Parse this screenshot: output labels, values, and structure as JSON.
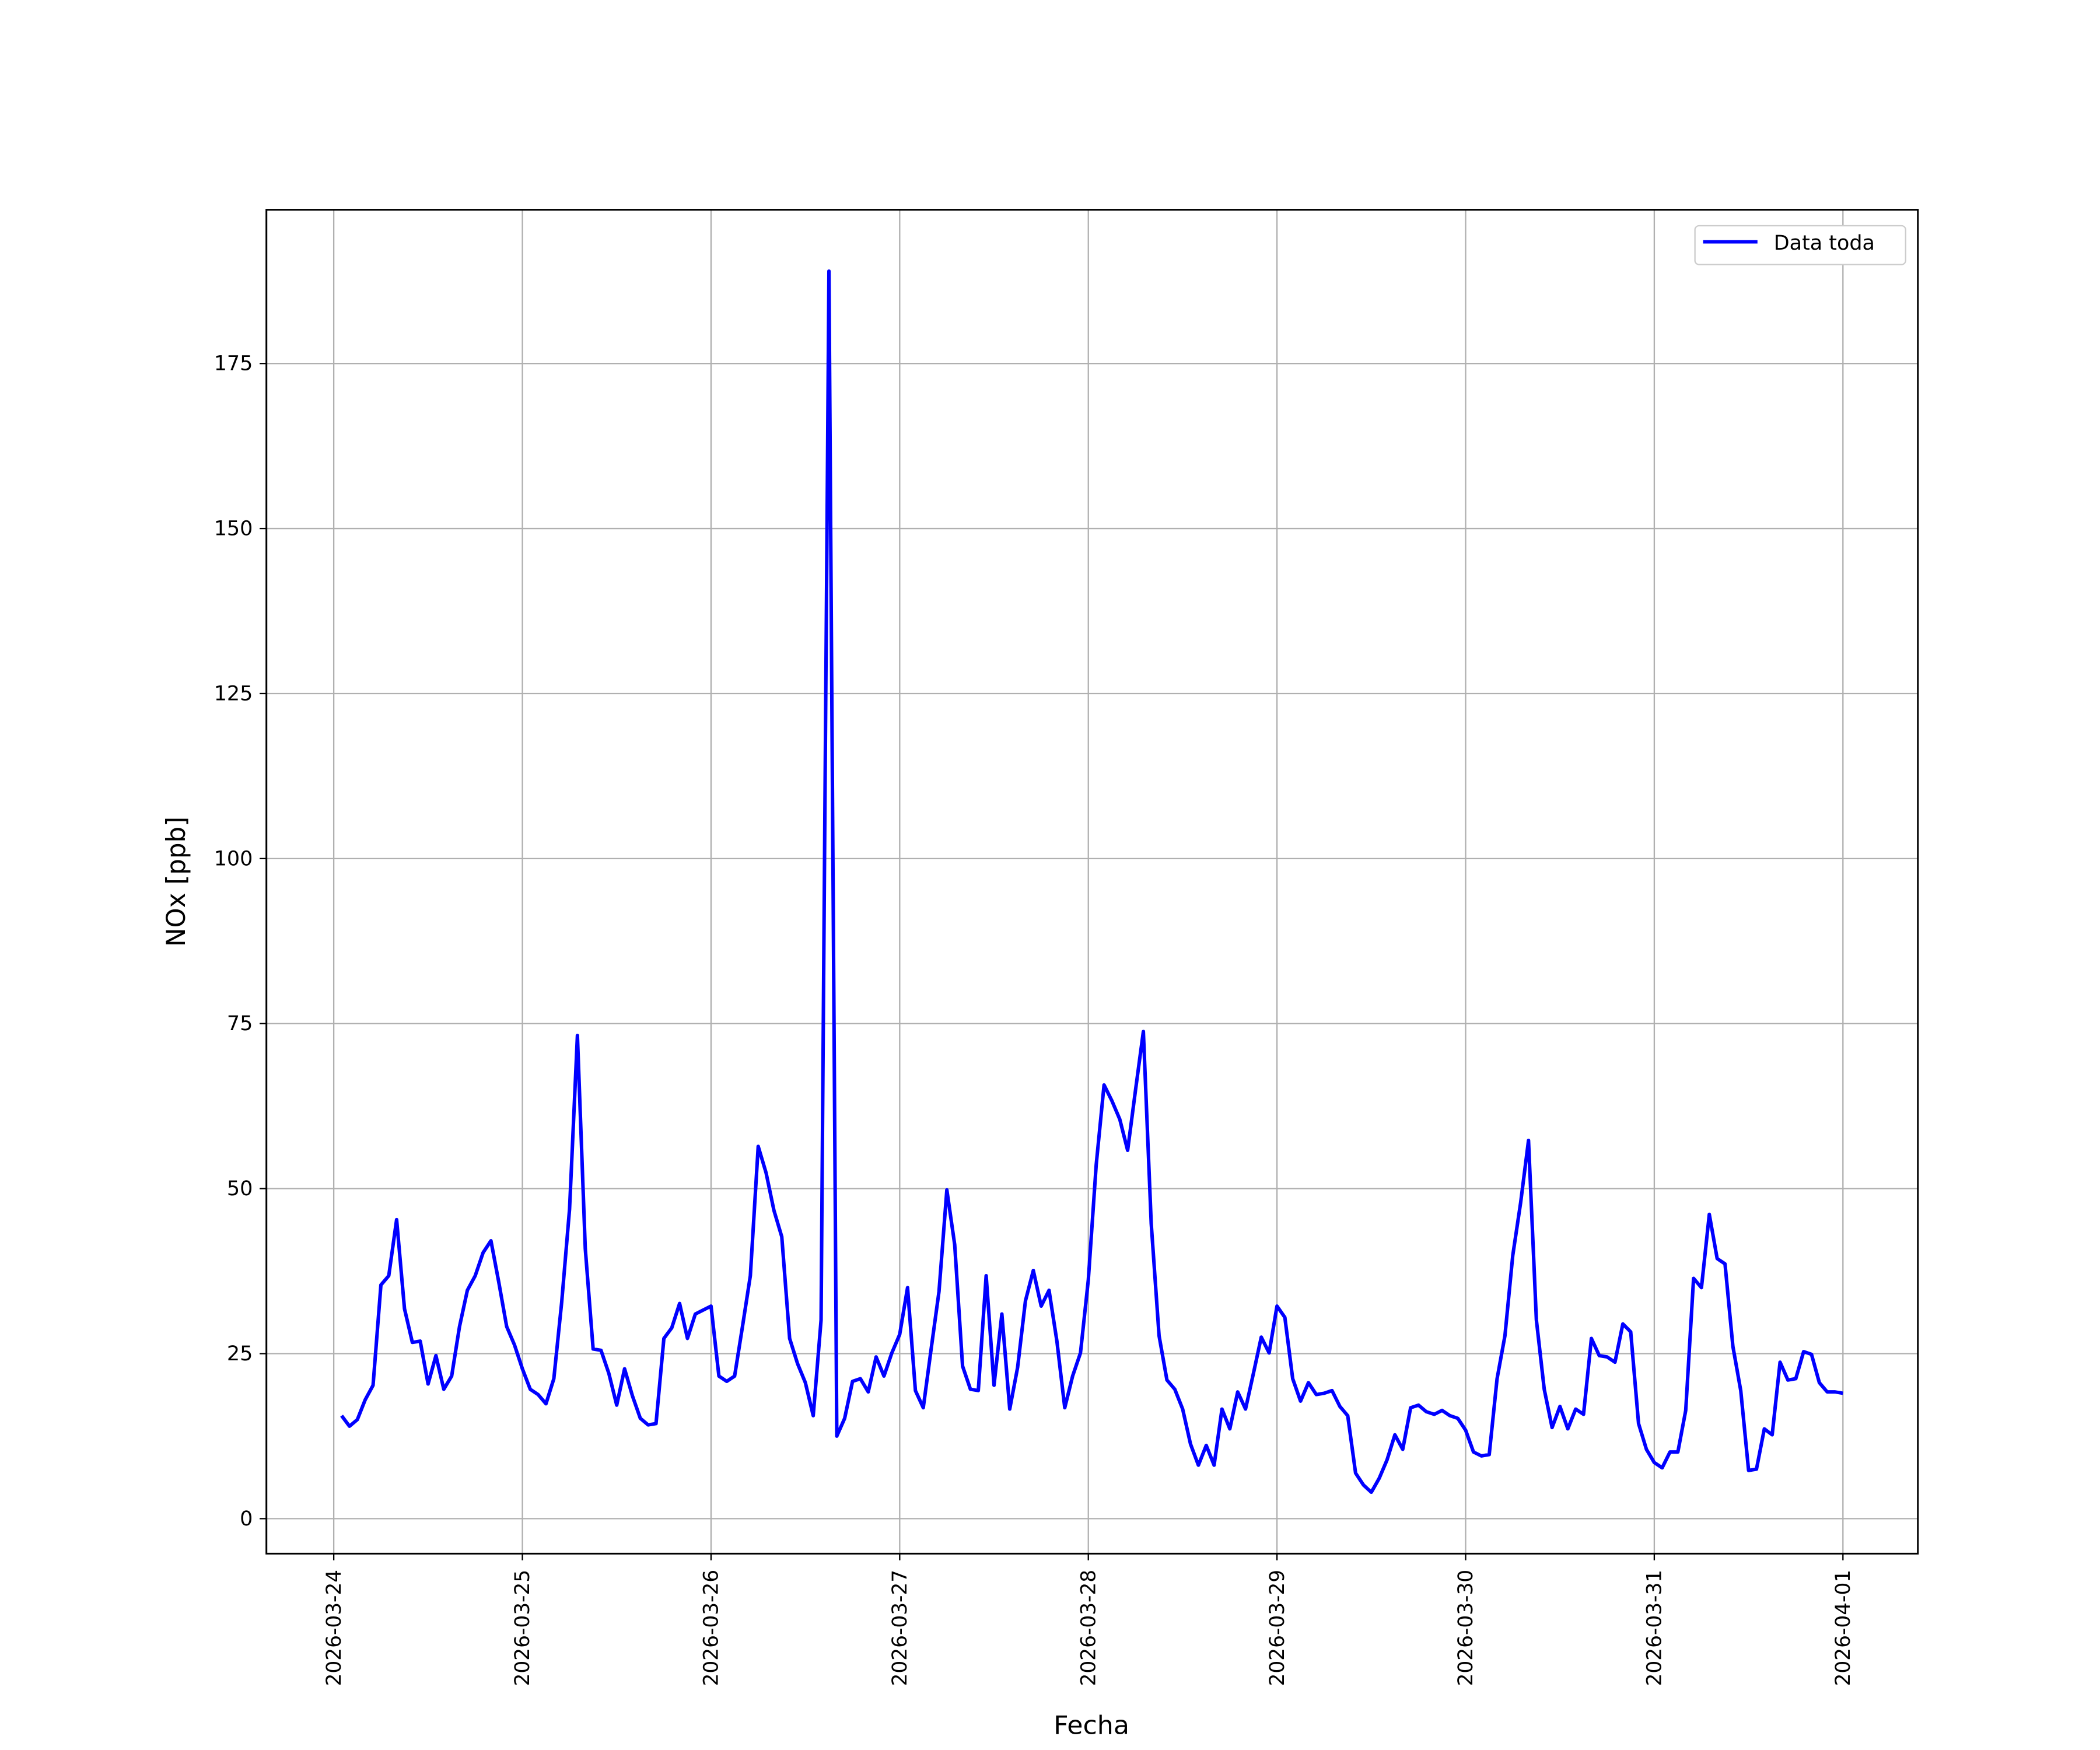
{
  "chart_data": {
    "type": "line",
    "xlabel": "Fecha",
    "ylabel": "NOx [ppb]",
    "x": [
      "2026-03-24 01:00",
      "2026-03-24 02:00",
      "2026-03-24 03:00",
      "2026-03-24 04:00",
      "2026-03-24 05:00",
      "2026-03-24 06:00",
      "2026-03-24 07:00",
      "2026-03-24 08:00",
      "2026-03-24 09:00",
      "2026-03-24 10:00",
      "2026-03-24 11:00",
      "2026-03-24 12:00",
      "2026-03-24 13:00",
      "2026-03-24 14:00",
      "2026-03-24 15:00",
      "2026-03-24 16:00",
      "2026-03-24 17:00",
      "2026-03-24 18:00",
      "2026-03-24 19:00",
      "2026-03-24 20:00",
      "2026-03-24 21:00",
      "2026-03-24 22:00",
      "2026-03-24 23:00",
      "2026-03-25 00:00",
      "2026-03-25 01:00",
      "2026-03-25 02:00",
      "2026-03-25 03:00",
      "2026-03-25 04:00",
      "2026-03-25 05:00",
      "2026-03-25 06:00",
      "2026-03-25 07:00",
      "2026-03-25 08:00",
      "2026-03-25 09:00",
      "2026-03-25 10:00",
      "2026-03-25 11:00",
      "2026-03-25 12:00",
      "2026-03-25 13:00",
      "2026-03-25 14:00",
      "2026-03-25 15:00",
      "2026-03-25 16:00",
      "2026-03-25 17:00",
      "2026-03-25 18:00",
      "2026-03-25 19:00",
      "2026-03-25 20:00",
      "2026-03-25 21:00",
      "2026-03-25 22:00",
      "2026-03-25 23:00",
      "2026-03-26 00:00",
      "2026-03-26 01:00",
      "2026-03-26 02:00",
      "2026-03-26 03:00",
      "2026-03-26 04:00",
      "2026-03-26 05:00",
      "2026-03-26 06:00",
      "2026-03-26 07:00",
      "2026-03-26 08:00",
      "2026-03-26 09:00",
      "2026-03-26 10:00",
      "2026-03-26 11:00",
      "2026-03-26 12:00",
      "2026-03-26 13:00",
      "2026-03-26 14:00",
      "2026-03-26 15:00",
      "2026-03-26 16:00",
      "2026-03-26 17:00",
      "2026-03-26 18:00",
      "2026-03-26 19:00",
      "2026-03-26 20:00",
      "2026-03-26 21:00",
      "2026-03-26 22:00",
      "2026-03-26 23:00",
      "2026-03-27 00:00",
      "2026-03-27 01:00",
      "2026-03-27 02:00",
      "2026-03-27 03:00",
      "2026-03-27 04:00",
      "2026-03-27 05:00",
      "2026-03-27 06:00",
      "2026-03-27 07:00",
      "2026-03-27 08:00",
      "2026-03-27 09:00",
      "2026-03-27 10:00",
      "2026-03-27 11:00",
      "2026-03-27 12:00",
      "2026-03-27 13:00",
      "2026-03-27 14:00",
      "2026-03-27 15:00",
      "2026-03-27 16:00",
      "2026-03-27 17:00",
      "2026-03-27 18:00",
      "2026-03-27 19:00",
      "2026-03-27 20:00",
      "2026-03-27 21:00",
      "2026-03-27 22:00",
      "2026-03-27 23:00",
      "2026-03-28 00:00",
      "2026-03-28 01:00",
      "2026-03-28 02:00",
      "2026-03-28 03:00",
      "2026-03-28 04:00",
      "2026-03-28 05:00",
      "2026-03-28 06:00",
      "2026-03-28 07:00",
      "2026-03-28 08:00",
      "2026-03-28 09:00",
      "2026-03-28 10:00",
      "2026-03-28 11:00",
      "2026-03-28 12:00",
      "2026-03-28 13:00",
      "2026-03-28 14:00",
      "2026-03-28 15:00",
      "2026-03-28 16:00",
      "2026-03-28 17:00",
      "2026-03-28 18:00",
      "2026-03-28 19:00",
      "2026-03-28 20:00",
      "2026-03-28 21:00",
      "2026-03-28 22:00",
      "2026-03-28 23:00",
      "2026-03-29 00:00",
      "2026-03-29 01:00",
      "2026-03-29 02:00",
      "2026-03-29 03:00",
      "2026-03-29 04:00",
      "2026-03-29 05:00",
      "2026-03-29 06:00",
      "2026-03-29 07:00",
      "2026-03-29 08:00",
      "2026-03-29 09:00",
      "2026-03-29 10:00",
      "2026-03-29 11:00",
      "2026-03-29 12:00",
      "2026-03-29 13:00",
      "2026-03-29 14:00",
      "2026-03-29 15:00",
      "2026-03-29 16:00",
      "2026-03-29 17:00",
      "2026-03-29 18:00",
      "2026-03-29 19:00",
      "2026-03-29 20:00",
      "2026-03-29 21:00",
      "2026-03-29 22:00",
      "2026-03-29 23:00",
      "2026-03-30 00:00",
      "2026-03-30 01:00",
      "2026-03-30 02:00",
      "2026-03-30 03:00",
      "2026-03-30 04:00",
      "2026-03-30 05:00",
      "2026-03-30 06:00",
      "2026-03-30 07:00",
      "2026-03-30 08:00",
      "2026-03-30 09:00",
      "2026-03-30 10:00",
      "2026-03-30 11:00",
      "2026-03-30 12:00",
      "2026-03-30 13:00",
      "2026-03-30 14:00",
      "2026-03-30 15:00",
      "2026-03-30 16:00",
      "2026-03-30 17:00",
      "2026-03-30 18:00",
      "2026-03-30 19:00",
      "2026-03-30 20:00",
      "2026-03-30 21:00",
      "2026-03-30 22:00",
      "2026-03-30 23:00",
      "2026-03-31 00:00",
      "2026-03-31 01:00",
      "2026-03-31 02:00",
      "2026-03-31 03:00",
      "2026-03-31 04:00",
      "2026-03-31 05:00",
      "2026-03-31 06:00",
      "2026-03-31 07:00",
      "2026-03-31 08:00",
      "2026-03-31 09:00",
      "2026-03-31 10:00",
      "2026-03-31 11:00",
      "2026-03-31 12:00",
      "2026-03-31 13:00",
      "2026-03-31 14:00",
      "2026-03-31 15:00",
      "2026-03-31 16:00",
      "2026-03-31 17:00",
      "2026-03-31 18:00",
      "2026-03-31 19:00",
      "2026-03-31 20:00",
      "2026-03-31 21:00",
      "2026-03-31 22:00",
      "2026-03-31 23:00",
      "2026-04-01 00:00"
    ],
    "series": [
      {
        "name": "Data toda",
        "color": "#0000ff",
        "values": [
          15.6,
          14,
          15,
          18,
          20.2,
          35.4,
          36.8,
          45.3,
          31.8,
          26.7,
          26.9,
          20.4,
          24.7,
          19.6,
          21.6,
          29.1,
          34.6,
          36.8,
          40.3,
          42.1,
          35.8,
          29.1,
          26.3,
          22.7,
          19.6,
          18.8,
          17.4,
          21.2,
          32.8,
          46.9,
          73.2,
          40.9,
          25.7,
          25.5,
          22,
          17.2,
          22.7,
          18.6,
          15.2,
          14.2,
          14.4,
          27.3,
          28.9,
          32.6,
          27.3,
          31,
          31.6,
          32.2,
          21.6,
          20.8,
          21.6,
          29.1,
          36.8,
          56.4,
          52.4,
          46.7,
          42.7,
          27.3,
          23.5,
          20.6,
          15.6,
          30.1,
          189,
          12.5,
          15.2,
          20.8,
          21.2,
          19.2,
          24.5,
          21.6,
          25.1,
          27.9,
          35,
          19.4,
          16.8,
          25.7,
          34.4,
          49.8,
          41.5,
          23.1,
          19.6,
          19.4,
          36.8,
          20.2,
          31,
          16.6,
          22.9,
          33,
          37.6,
          32.2,
          34.6,
          26.9,
          16.8,
          21.6,
          25.1,
          36.2,
          53.6,
          65.7,
          63.3,
          60.5,
          55.8,
          64.9,
          73.8,
          44.7,
          27.7,
          21,
          19.6,
          16.6,
          11.3,
          8.1,
          11.1,
          8.1,
          16.6,
          13.6,
          19.2,
          16.6,
          22,
          27.5,
          25.1,
          32.2,
          30.5,
          21.2,
          17.8,
          20.6,
          18.8,
          19,
          19.4,
          17,
          15.6,
          6.9,
          5.1,
          4,
          6.1,
          8.9,
          12.7,
          10.5,
          16.8,
          17.2,
          16.2,
          15.8,
          16.4,
          15.6,
          15.2,
          13.4,
          10.1,
          9.5,
          9.7,
          21.2,
          27.7,
          39.9,
          47.9,
          57.3,
          30.1,
          19.6,
          13.8,
          17,
          13.6,
          16.6,
          15.8,
          27.3,
          24.7,
          24.5,
          23.7,
          29.5,
          28.3,
          14.4,
          10.5,
          8.5,
          7.7,
          10.1,
          10.1,
          16.4,
          36.4,
          35,
          46.1,
          39.4,
          38.6,
          26.1,
          19.4,
          7.3,
          7.5,
          13.6,
          12.7,
          23.7,
          21,
          21.2,
          25.3,
          24.9,
          20.6,
          19.2,
          19.2,
          19
        ]
      }
    ],
    "xlim": [
      "2026-03-23 15:26",
      "2026-04-01 09:32"
    ],
    "xticks": [
      "2026-03-24",
      "2026-03-25",
      "2026-03-26",
      "2026-03-27",
      "2026-03-28",
      "2026-03-29",
      "2026-03-30",
      "2026-03-31",
      "2026-04-01"
    ],
    "ylim": [
      -5.3,
      198.3
    ],
    "yticks": [
      0,
      25,
      50,
      75,
      100,
      125,
      150,
      175
    ],
    "grid": true,
    "legend": "upper right"
  }
}
